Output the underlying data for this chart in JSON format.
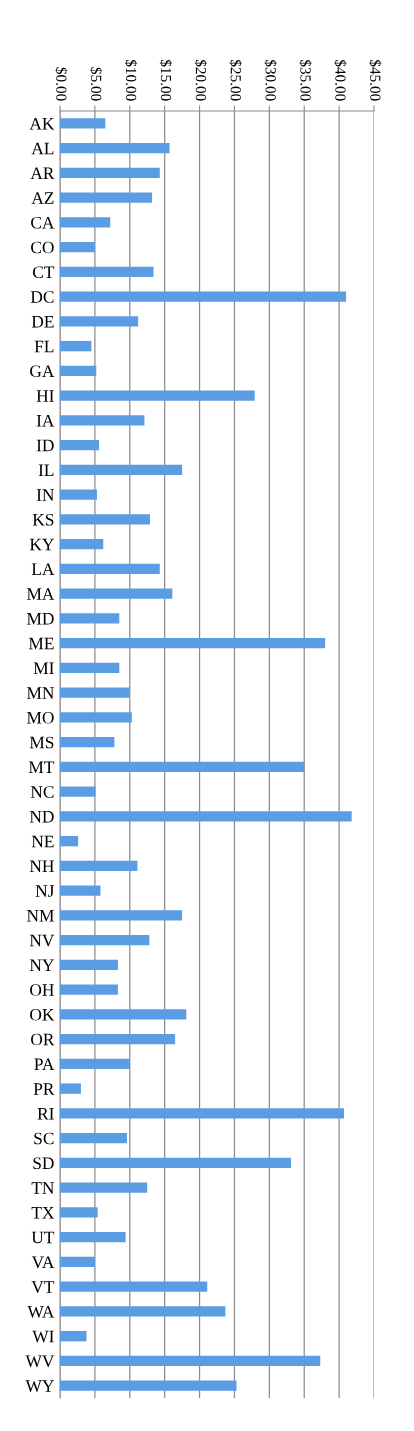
{
  "chart_data": {
    "type": "bar",
    "orientation": "horizontal",
    "categories": [
      "AK",
      "AL",
      "AR",
      "AZ",
      "CA",
      "CO",
      "CT",
      "DC",
      "DE",
      "FL",
      "GA",
      "HI",
      "IA",
      "ID",
      "IL",
      "IN",
      "KS",
      "KY",
      "LA",
      "MA",
      "MD",
      "ME",
      "MI",
      "MN",
      "MO",
      "MS",
      "MT",
      "NC",
      "ND",
      "NE",
      "NH",
      "NJ",
      "NM",
      "NV",
      "NY",
      "OH",
      "OK",
      "OR",
      "PA",
      "PR",
      "RI",
      "SC",
      "SD",
      "TN",
      "TX",
      "UT",
      "VA",
      "VT",
      "WA",
      "WI",
      "WV",
      "WY"
    ],
    "values": [
      6.5,
      15.7,
      14.3,
      13.2,
      7.2,
      5.0,
      13.4,
      41.0,
      11.2,
      4.5,
      5.2,
      27.9,
      12.1,
      5.6,
      17.5,
      5.3,
      12.9,
      6.2,
      14.3,
      16.1,
      8.5,
      38.0,
      8.5,
      10.0,
      10.3,
      7.8,
      35.0,
      5.1,
      41.8,
      2.6,
      11.1,
      5.8,
      17.5,
      12.8,
      8.3,
      8.3,
      18.1,
      16.5,
      10.0,
      3.0,
      40.7,
      9.6,
      33.1,
      12.5,
      5.4,
      9.4,
      5.0,
      21.1,
      23.7,
      3.8,
      37.3,
      25.3
    ],
    "color": "#5b9de2",
    "xlim": [
      0,
      45
    ],
    "xticks": [
      {
        "value": 0,
        "label": "$0.00"
      },
      {
        "value": 5,
        "label": "$5.00"
      },
      {
        "value": 10,
        "label": "$10.00"
      },
      {
        "value": 15,
        "label": "$15.00"
      },
      {
        "value": 20,
        "label": "$20.00"
      },
      {
        "value": 25,
        "label": "$25.00"
      },
      {
        "value": 30,
        "label": "$30.00"
      },
      {
        "value": 35,
        "label": "$35.00"
      },
      {
        "value": 40,
        "label": "$40.00"
      },
      {
        "value": 45,
        "label": "$45.00"
      }
    ],
    "grid": "x"
  }
}
